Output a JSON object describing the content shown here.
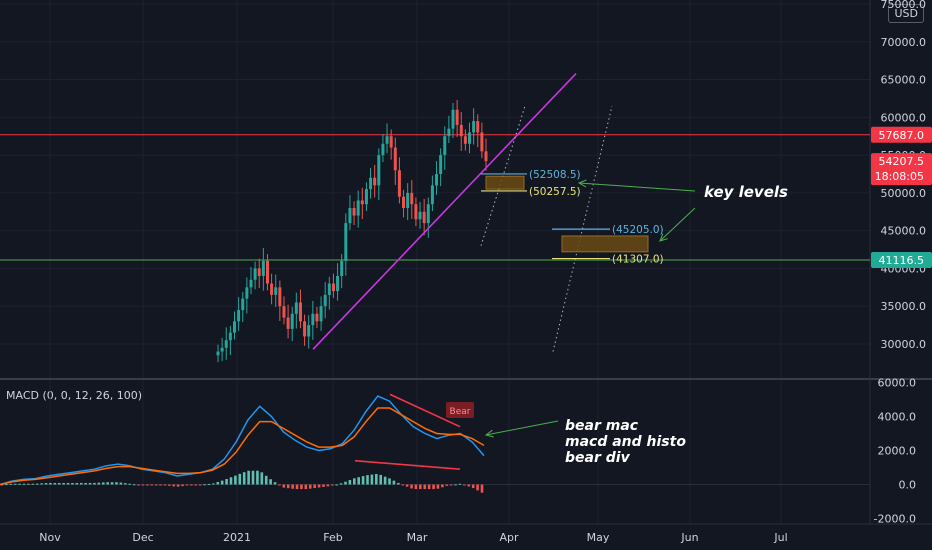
{
  "currency_button": "USD",
  "macd_label": "MACD (0, 0, 12, 26, 100)",
  "chart_data": {
    "type": "candlestick",
    "y_axis_ticks": [
      "75000.0",
      "70000.0",
      "65000.0",
      "60000.0",
      "55000.0",
      "50000.0",
      "45000.0",
      "40000.0",
      "35000.0",
      "30000.0"
    ],
    "macd_axis_ticks": [
      "6000.0",
      "4000.0",
      "2000.0",
      "0.0",
      "-2000.0"
    ],
    "x_axis_ticks": [
      "Nov",
      "Dec",
      "2021",
      "Feb",
      "Mar",
      "Apr",
      "May",
      "Jun",
      "Jul"
    ],
    "price_tags": [
      {
        "label": "57687.0",
        "color": "#f23645"
      },
      {
        "label": "54207.5",
        "sub": "18:08:05",
        "color": "#f23645"
      },
      {
        "label": "41116.5",
        "color": "#22ab94"
      }
    ],
    "horizontal_lines": [
      {
        "value": 57687.0,
        "color": "#f23645"
      },
      {
        "value": 41116.5,
        "color": "#4caf50"
      }
    ],
    "level_labels": [
      {
        "label": "(52508.5)",
        "value": 52508.5,
        "color": "#5fb3d9"
      },
      {
        "label": "(50257.5)",
        "value": 50257.5,
        "color": "#e8e27a"
      },
      {
        "label": "(45205.0)",
        "value": 45205.0,
        "color": "#5fb3d9"
      },
      {
        "label": "(41307.0)",
        "value": 41307.0,
        "color": "#e8e27a"
      }
    ],
    "annotations": [
      "key levels",
      "bear mac",
      "macd and histo",
      "bear div"
    ],
    "bear_label": "Bear",
    "candles_close_approx": [
      29000,
      29500,
      30500,
      31500,
      33000,
      34500,
      36000,
      37500,
      38500,
      40000,
      39000,
      41000,
      38000,
      36500,
      37500,
      35000,
      33500,
      32000,
      34000,
      35500,
      33000,
      31000,
      32500,
      34000,
      33000,
      35000,
      36500,
      38000,
      37000,
      39000,
      41000,
      46000,
      48000,
      47000,
      49000,
      48500,
      50500,
      52000,
      51000,
      55000,
      56500,
      57500,
      56000,
      53000,
      49500,
      48000,
      50000,
      48500,
      46500,
      47500,
      46000,
      48500,
      51000,
      52500,
      55000,
      57500,
      58500,
      61000,
      59000,
      57500,
      56500,
      58000,
      59500,
      58000,
      55500,
      54200
    ],
    "macd_line_approx": [
      0,
      200,
      300,
      350,
      500,
      600,
      700,
      800,
      900,
      1100,
      1200,
      1100,
      900,
      800,
      700,
      500,
      600,
      700,
      900,
      1500,
      2500,
      3800,
      4600,
      4000,
      3100,
      2600,
      2200,
      2000,
      2100,
      2400,
      3200,
      4300,
      5200,
      4900,
      4100,
      3400,
      3000,
      2700,
      2900,
      3000,
      2500,
      1700
    ],
    "signal_line_approx": [
      0,
      150,
      250,
      300,
      400,
      500,
      600,
      700,
      800,
      950,
      1050,
      1050,
      950,
      850,
      750,
      650,
      650,
      700,
      850,
      1200,
      1900,
      2900,
      3700,
      3700,
      3300,
      2900,
      2500,
      2200,
      2200,
      2300,
      2800,
      3700,
      4500,
      4500,
      4100,
      3700,
      3300,
      3000,
      2950,
      2950,
      2700,
      2300
    ]
  }
}
